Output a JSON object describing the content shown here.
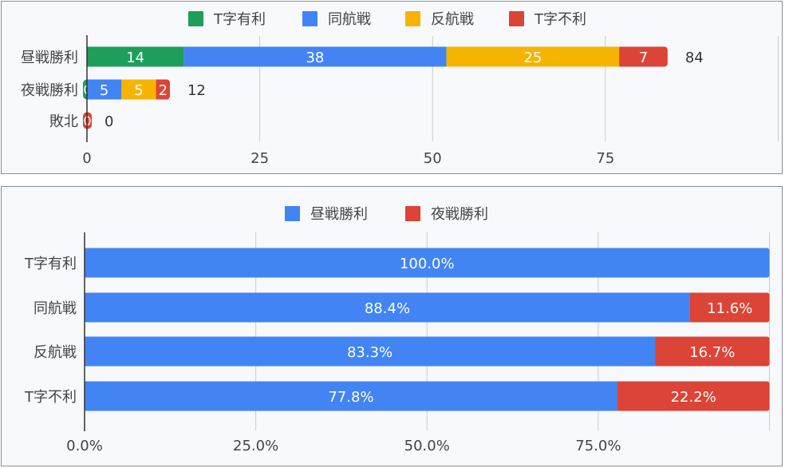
{
  "colors": {
    "green": "#1e9e58",
    "blue": "#4284f4",
    "yellow": "#f6b400",
    "red": "#db4436",
    "text": "#444444",
    "grid": "#cccccc",
    "axis": "#333333",
    "panel_bg": "#f8f9fd"
  },
  "chart_data": [
    {
      "type": "bar",
      "orientation": "horizontal",
      "stacked": true,
      "categories": [
        "昼戦勝利",
        "夜戦勝利",
        "敗北"
      ],
      "series": [
        {
          "name": "T字有利",
          "values": [
            14,
            0,
            0
          ],
          "color": "#1e9e58"
        },
        {
          "name": "同航戦",
          "values": [
            38,
            5,
            0
          ],
          "color": "#4284f4"
        },
        {
          "name": "反航戦",
          "values": [
            25,
            5,
            0
          ],
          "color": "#f6b400"
        },
        {
          "name": "T字不利",
          "values": [
            7,
            2,
            0
          ],
          "color": "#db4436"
        }
      ],
      "totals": [
        84,
        12,
        0
      ],
      "xlim": [
        0,
        100
      ],
      "xticks": [
        0,
        25,
        50,
        75
      ],
      "xtick_labels": [
        "0",
        "25",
        "50",
        "75"
      ],
      "legend": "top",
      "grid": true
    },
    {
      "type": "bar",
      "orientation": "horizontal",
      "stacked": true,
      "normalized": true,
      "categories": [
        "T字有利",
        "同航戦",
        "反航戦",
        "T字不利"
      ],
      "series": [
        {
          "name": "昼戦勝利",
          "values": [
            100.0,
            88.4,
            83.3,
            77.8
          ],
          "labels": [
            "100.0%",
            "88.4%",
            "83.3%",
            "77.8%"
          ],
          "color": "#4284f4"
        },
        {
          "name": "夜戦勝利",
          "values": [
            0.0,
            11.6,
            16.7,
            22.2
          ],
          "labels": [
            "",
            "11.6%",
            "16.7%",
            "22.2%"
          ],
          "color": "#db4436"
        }
      ],
      "xlim": [
        0,
        100
      ],
      "xticks": [
        0,
        25,
        50,
        75
      ],
      "xtick_labels": [
        "0.0%",
        "25.0%",
        "50.0%",
        "75.0%"
      ],
      "legend": "top",
      "grid": true
    }
  ]
}
